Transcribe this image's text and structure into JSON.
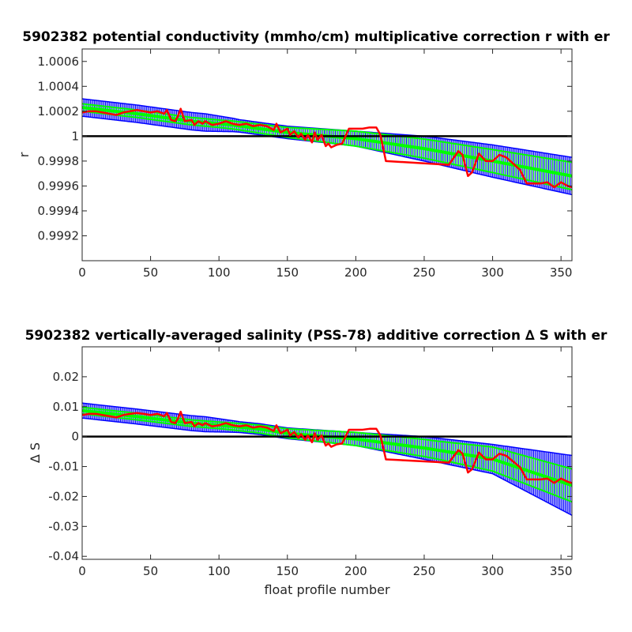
{
  "figure": {
    "background": "#ffffff",
    "colors": {
      "errorbar_outer": "#0000ff",
      "errorbar_inner": "#00ff00",
      "series": "#ff0000",
      "reference": "#000000"
    }
  },
  "chart_data": [
    {
      "type": "line",
      "title": "5902382 potential conductivity (mmho/cm) multiplicative correction r with er",
      "xlabel": "",
      "ylabel": "r",
      "xlim": [
        0,
        358
      ],
      "ylim": [
        0.999,
        1.0007
      ],
      "xticks": [
        0,
        50,
        100,
        150,
        200,
        250,
        300,
        350
      ],
      "yticks": [
        0.9992,
        0.9994,
        0.9996,
        0.9998,
        1,
        1.0002,
        1.0004,
        1.0006
      ],
      "ytick_labels": [
        "0.9992",
        "0.9994",
        "0.9996",
        "0.9998",
        "1",
        "1.0002",
        "1.0004",
        "1.0006"
      ],
      "reference_line": 1,
      "grid": false,
      "fit_points": [
        [
          0,
          1.00023
        ],
        [
          40,
          1.00018
        ],
        [
          80,
          1.00012
        ],
        [
          110,
          1.00009
        ],
        [
          130,
          1.00006
        ],
        [
          150,
          1.00003
        ],
        [
          200,
          0.99998
        ],
        [
          250,
          0.9999
        ],
        [
          300,
          0.9998
        ],
        [
          358,
          0.99968
        ]
      ],
      "outer_halfwidth_points": [
        [
          0,
          7e-05
        ],
        [
          90,
          7e-05
        ],
        [
          115,
          5e-05
        ],
        [
          150,
          5e-05
        ],
        [
          200,
          6e-05
        ],
        [
          250,
          0.0001
        ],
        [
          300,
          0.00013
        ],
        [
          358,
          0.00015
        ]
      ],
      "inner_halfwidth_points": [
        [
          0,
          3e-05
        ],
        [
          100,
          3e-05
        ],
        [
          150,
          4e-05
        ],
        [
          200,
          6e-05
        ],
        [
          260,
          8e-05
        ],
        [
          358,
          0.00011
        ]
      ],
      "series": [
        {
          "values": [
            [
              0,
              1.00019
            ],
            [
              5,
              1.0002
            ],
            [
              10,
              1.0002
            ],
            [
              15,
              1.00019
            ],
            [
              20,
              1.00018
            ],
            [
              25,
              1.00017
            ],
            [
              30,
              1.00019
            ],
            [
              35,
              1.0002
            ],
            [
              40,
              1.00021
            ],
            [
              45,
              1.0002
            ],
            [
              50,
              1.00019
            ],
            [
              55,
              1.0002
            ],
            [
              60,
              1.00018
            ],
            [
              62,
              1.00021
            ],
            [
              65,
              1.00013
            ],
            [
              68,
              1.00012
            ],
            [
              70,
              1.00016
            ],
            [
              72,
              1.00022
            ],
            [
              75,
              1.00012
            ],
            [
              80,
              1.00013
            ],
            [
              82,
              1.00009
            ],
            [
              85,
              1.00012
            ],
            [
              88,
              1.0001
            ],
            [
              90,
              1.00012
            ],
            [
              95,
              1.00009
            ],
            [
              100,
              1.0001
            ],
            [
              105,
              1.00012
            ],
            [
              110,
              1.0001
            ],
            [
              115,
              1.00009
            ],
            [
              120,
              1.0001
            ],
            [
              125,
              1.00008
            ],
            [
              130,
              1.00009
            ],
            [
              135,
              1.00008
            ],
            [
              140,
              1.00005
            ],
            [
              142,
              1.0001
            ],
            [
              145,
              1.00003
            ],
            [
              150,
              1.00006
            ],
            [
              152,
              1.00001
            ],
            [
              155,
              1.00004
            ],
            [
              158,
              0.99999
            ],
            [
              160,
              1.00002
            ],
            [
              163,
              0.99997
            ],
            [
              165,
              1.00001
            ],
            [
              168,
              0.99995
            ],
            [
              170,
              1.00003
            ],
            [
              172,
              0.99997
            ],
            [
              175,
              1.00001
            ],
            [
              178,
              0.99992
            ],
            [
              180,
              0.99994
            ],
            [
              182,
              0.99991
            ],
            [
              186,
              0.99993
            ],
            [
              190,
              0.99994
            ],
            [
              195,
              1.00006
            ],
            [
              200,
              1.00006
            ],
            [
              205,
              1.00006
            ],
            [
              210,
              1.00007
            ],
            [
              215,
              1.00007
            ],
            [
              218,
              1.00001
            ],
            [
              222,
              0.9998
            ],
            [
              268,
              0.99977
            ],
            [
              275,
              0.99988
            ],
            [
              278,
              0.99985
            ],
            [
              282,
              0.99968
            ],
            [
              285,
              0.99971
            ],
            [
              290,
              0.99986
            ],
            [
              295,
              0.9998
            ],
            [
              300,
              0.9998
            ],
            [
              305,
              0.99985
            ],
            [
              310,
              0.99983
            ],
            [
              315,
              0.99978
            ],
            [
              320,
              0.99973
            ],
            [
              325,
              0.99962
            ],
            [
              330,
              0.99962
            ],
            [
              335,
              0.99962
            ],
            [
              340,
              0.99963
            ],
            [
              345,
              0.99959
            ],
            [
              350,
              0.99963
            ],
            [
              355,
              0.9996
            ],
            [
              358,
              0.99959
            ]
          ]
        }
      ]
    },
    {
      "type": "line",
      "title": "5902382 vertically-averaged salinity (PSS-78) additive correction ∆ S with er",
      "xlabel": "float profile number",
      "ylabel": "∆ S",
      "xlim": [
        0,
        358
      ],
      "ylim": [
        -0.041,
        0.03
      ],
      "xticks": [
        0,
        50,
        100,
        150,
        200,
        250,
        300,
        350
      ],
      "yticks": [
        -0.04,
        -0.03,
        -0.02,
        -0.01,
        0,
        0.01,
        0.02
      ],
      "ytick_labels": [
        "-0.04",
        "-0.03",
        "-0.02",
        "-0.01",
        "0",
        "0.01",
        "0.02"
      ],
      "reference_line": 0,
      "grid": false,
      "fit_points": [
        [
          0,
          0.0087
        ],
        [
          40,
          0.0067
        ],
        [
          80,
          0.0045
        ],
        [
          110,
          0.0034
        ],
        [
          130,
          0.0025
        ],
        [
          150,
          0.0011
        ],
        [
          200,
          -0.0008
        ],
        [
          250,
          -0.0038
        ],
        [
          300,
          -0.0075
        ],
        [
          358,
          -0.0163
        ]
      ],
      "outer_halfwidth_points": [
        [
          0,
          0.0025
        ],
        [
          90,
          0.0025
        ],
        [
          115,
          0.0018
        ],
        [
          150,
          0.0018
        ],
        [
          200,
          0.0022
        ],
        [
          250,
          0.0038
        ],
        [
          300,
          0.0049
        ],
        [
          358,
          0.01
        ]
      ],
      "inner_halfwidth_points": [
        [
          0,
          0.0011
        ],
        [
          100,
          0.0011
        ],
        [
          150,
          0.0015
        ],
        [
          200,
          0.0022
        ],
        [
          260,
          0.003
        ],
        [
          358,
          0.0055
        ]
      ],
      "series": [
        {
          "values": [
            [
              0,
              0.0072
            ],
            [
              5,
              0.0076
            ],
            [
              10,
              0.0076
            ],
            [
              15,
              0.0072
            ],
            [
              20,
              0.0068
            ],
            [
              25,
              0.0064
            ],
            [
              30,
              0.0072
            ],
            [
              35,
              0.0076
            ],
            [
              40,
              0.0079
            ],
            [
              45,
              0.0076
            ],
            [
              50,
              0.0072
            ],
            [
              55,
              0.0076
            ],
            [
              60,
              0.0068
            ],
            [
              62,
              0.0079
            ],
            [
              65,
              0.0049
            ],
            [
              68,
              0.0045
            ],
            [
              70,
              0.006
            ],
            [
              72,
              0.0083
            ],
            [
              75,
              0.0045
            ],
            [
              80,
              0.0049
            ],
            [
              82,
              0.0034
            ],
            [
              85,
              0.0045
            ],
            [
              88,
              0.0038
            ],
            [
              90,
              0.0045
            ],
            [
              95,
              0.0034
            ],
            [
              100,
              0.0038
            ],
            [
              105,
              0.0045
            ],
            [
              110,
              0.0038
            ],
            [
              115,
              0.0034
            ],
            [
              120,
              0.0038
            ],
            [
              125,
              0.003
            ],
            [
              130,
              0.0034
            ],
            [
              135,
              0.003
            ],
            [
              140,
              0.0019
            ],
            [
              142,
              0.0038
            ],
            [
              145,
              0.0011
            ],
            [
              150,
              0.0023
            ],
            [
              152,
              0.0004
            ],
            [
              155,
              0.0015
            ],
            [
              158,
              -0.0004
            ],
            [
              160,
              0.0008
            ],
            [
              163,
              -0.0011
            ],
            [
              165,
              0.0004
            ],
            [
              168,
              -0.0019
            ],
            [
              170,
              0.0011
            ],
            [
              172,
              -0.0011
            ],
            [
              175,
              0.0004
            ],
            [
              178,
              -0.003
            ],
            [
              180,
              -0.0023
            ],
            [
              182,
              -0.0034
            ],
            [
              186,
              -0.0026
            ],
            [
              190,
              -0.0023
            ],
            [
              195,
              0.0023
            ],
            [
              200,
              0.0023
            ],
            [
              205,
              0.0023
            ],
            [
              210,
              0.0026
            ],
            [
              215,
              0.0026
            ],
            [
              218,
              0.0004
            ],
            [
              222,
              -0.0076
            ],
            [
              268,
              -0.0087
            ],
            [
              275,
              -0.0045
            ],
            [
              278,
              -0.0057
            ],
            [
              282,
              -0.012
            ],
            [
              285,
              -0.0109
            ],
            [
              290,
              -0.0053
            ],
            [
              295,
              -0.0076
            ],
            [
              300,
              -0.0076
            ],
            [
              305,
              -0.0057
            ],
            [
              310,
              -0.0064
            ],
            [
              315,
              -0.0083
            ],
            [
              320,
              -0.0102
            ],
            [
              325,
              -0.0143
            ],
            [
              330,
              -0.0143
            ],
            [
              335,
              -0.0143
            ],
            [
              340,
              -0.014
            ],
            [
              345,
              -0.0155
            ],
            [
              350,
              -0.014
            ],
            [
              355,
              -0.0151
            ],
            [
              358,
              -0.0155
            ]
          ]
        }
      ]
    }
  ]
}
